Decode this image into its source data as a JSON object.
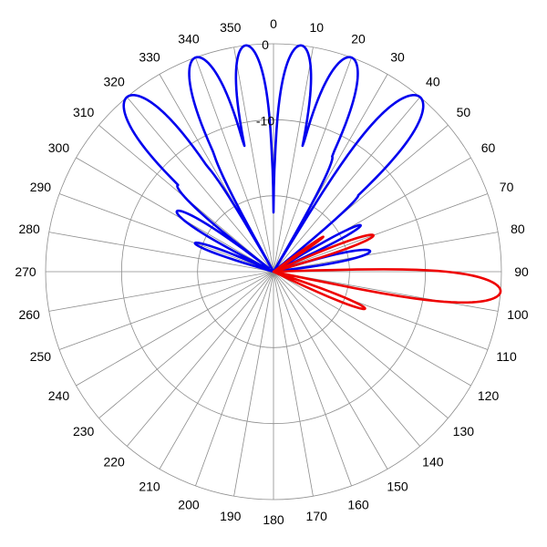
{
  "chart_data": {
    "type": "polar-line",
    "title": "",
    "angle_unit": "degrees",
    "angle_direction": "clockwise",
    "zero_at": "top",
    "angular_ticks": [
      "0",
      "10",
      "20",
      "30",
      "40",
      "50",
      "60",
      "70",
      "80",
      "90",
      "100",
      "110",
      "120",
      "130",
      "140",
      "150",
      "160",
      "170",
      "180",
      "190",
      "200",
      "210",
      "220",
      "230",
      "240",
      "250",
      "260",
      "270",
      "280",
      "290",
      "300",
      "310",
      "320",
      "330",
      "340",
      "350"
    ],
    "radial_unit": "dB",
    "radial_range": [
      -30,
      0
    ],
    "radial_ticks": [
      "0",
      "-10"
    ],
    "grid": true,
    "series": [
      {
        "color": "#0000ee",
        "lobes": [
          {
            "center": -40,
            "width": 18,
            "peak": 0
          },
          {
            "center": -20,
            "width": 16,
            "peak": 0
          },
          {
            "center": -7,
            "width": 14,
            "peak": 0
          },
          {
            "center": 7,
            "width": 14,
            "peak": 0
          },
          {
            "center": 20,
            "width": 16,
            "peak": 0
          },
          {
            "center": 40,
            "width": 18,
            "peak": 0
          },
          {
            "center": -58,
            "width": 12,
            "peak": -15
          },
          {
            "center": -48,
            "width": 10,
            "peak": -13
          },
          {
            "center": -33,
            "width": 7,
            "peak": -13
          },
          {
            "center": -26,
            "width": 7,
            "peak": -12
          },
          {
            "center": -13,
            "width": 6,
            "peak": -13
          },
          {
            "center": -2,
            "width": 5,
            "peak": -12
          },
          {
            "center": 2,
            "width": 5,
            "peak": -12
          },
          {
            "center": 13,
            "width": 6,
            "peak": -13
          },
          {
            "center": 27,
            "width": 7,
            "peak": -13
          },
          {
            "center": 34,
            "width": 6,
            "peak": -14
          },
          {
            "center": 48,
            "width": 6,
            "peak": -15
          },
          {
            "center": 62,
            "width": 8,
            "peak": -17
          },
          {
            "center": 78,
            "width": 12,
            "peak": -17
          },
          {
            "center": -70,
            "width": 10,
            "peak": -19
          }
        ]
      },
      {
        "color": "#ee0000",
        "lobes": [
          {
            "center": 95,
            "width": 14,
            "peak": 0
          },
          {
            "center": 70,
            "width": 9,
            "peak": -16
          },
          {
            "center": 112,
            "width": 8,
            "peak": -17
          },
          {
            "center": 55,
            "width": 5,
            "peak": -22
          }
        ]
      }
    ]
  }
}
